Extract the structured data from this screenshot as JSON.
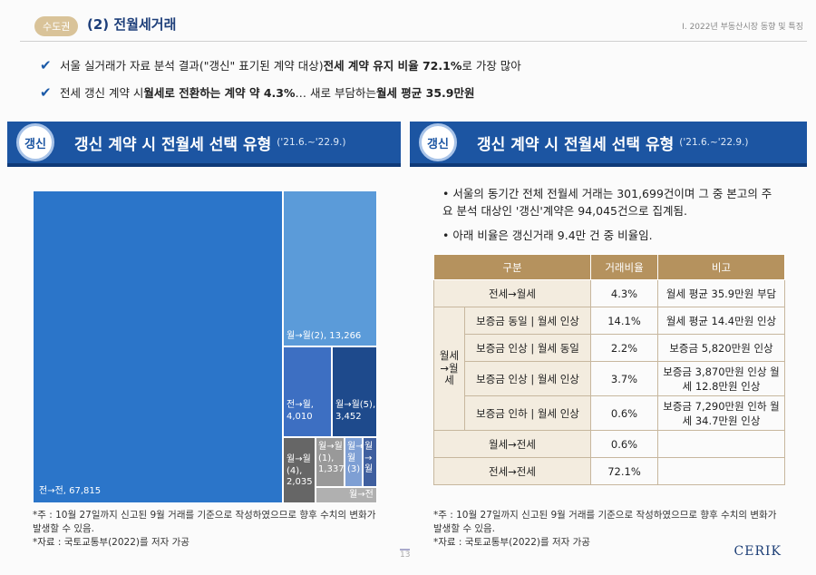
{
  "header": {
    "badge": "수도권",
    "section_title": "(2) 전월세거래",
    "running_head": "I. 2022년 부동산시장 동향 및 특징"
  },
  "bullets": [
    {
      "pre": "서울 실거래가 자료 분석 결과(\"갱신\" 표기된 계약 대상) ",
      "bold": "전세 계약 유지 비율 72.1%",
      "post": "로 가장 많아"
    },
    {
      "pre": "전세 갱신 계약 시 ",
      "bold": "월세로 전환하는 계약 약 4.3%",
      "mid": "… 새로 부담하는 ",
      "bold2": "월세 평균 35.9만원",
      "post": ""
    }
  ],
  "left_panel": {
    "tag": "갱신",
    "title": "갱신 계약 시 전월세 선택 유형",
    "period": "('21.6.~'22.9.)",
    "treemap": [
      {
        "label": "전→전, 67,815",
        "value": 67815
      },
      {
        "label": "월→월(2), 13,266",
        "value": 13266
      },
      {
        "label": "전→월, 4,010",
        "value": 4010
      },
      {
        "label": "월→월(5), 3,452",
        "value": 3452
      },
      {
        "label": "월→월(4), 2,035",
        "value": 2035
      },
      {
        "label": "월→월(1), 1,337",
        "value": 1337
      },
      {
        "label": "월→월(3)",
        "value": null
      },
      {
        "label": "월→월",
        "value": null
      },
      {
        "label": "월→전",
        "value": null
      }
    ],
    "note1": "*주 : 10월 27일까지 신고된 9월 거래를 기준으로 작성하였으므로 향후 수치의 변화가 발생할 수 있음.",
    "note2": "*자료 : 국토교통부(2022)를 저자 가공"
  },
  "right_panel": {
    "tag": "갱신",
    "title": "갱신 계약 시 전월세 선택 유형",
    "period": "('21.6.~'22.9.)",
    "text1": "• 서울의 동기간 전체 전월세 거래는 301,699건이며 그 중 본고의 주요 분석 대상인 '갱신'계약은 94,045건으로 집계됨.",
    "text2": "• 아래 비율은 갱신거래 9.4만 건 중 비율임.",
    "table": {
      "headers": [
        "구분",
        "거래비율",
        "비고"
      ],
      "group_label": "월세→월세",
      "rows": [
        {
          "type": "전세→월세",
          "ratio": "4.3%",
          "note": "월세 평균 35.9만원 부담"
        },
        {
          "type": "보증금 동일 | 월세 인상",
          "ratio": "14.1%",
          "note": "월세 평균 14.4만원 인상"
        },
        {
          "type": "보증금 인상 | 월세 동일",
          "ratio": "2.2%",
          "note": "보증금 5,820만원 인상"
        },
        {
          "type": "보증금 인상 | 월세 인상",
          "ratio": "3.7%",
          "note": "보증금 3,870만원 인상 월세 12.8만원 인상"
        },
        {
          "type": "보증금 인하 | 월세 인상",
          "ratio": "0.6%",
          "note": "보증금 7,290만원 인하 월세 34.7만원 인상"
        },
        {
          "type": "월세→전세",
          "ratio": "0.6%",
          "note": ""
        },
        {
          "type": "전세→전세",
          "ratio": "72.1%",
          "note": ""
        }
      ]
    },
    "note1": "*주 : 10월 27일까지 신고된 9월 거래를 기준으로 작성하였으므로 향후 수치의 변화가 발생할 수 있음.",
    "note2": "*자료 : 국토교통부(2022)를 저자 가공"
  },
  "footer": {
    "page": "13",
    "logo": "CERIK"
  }
}
